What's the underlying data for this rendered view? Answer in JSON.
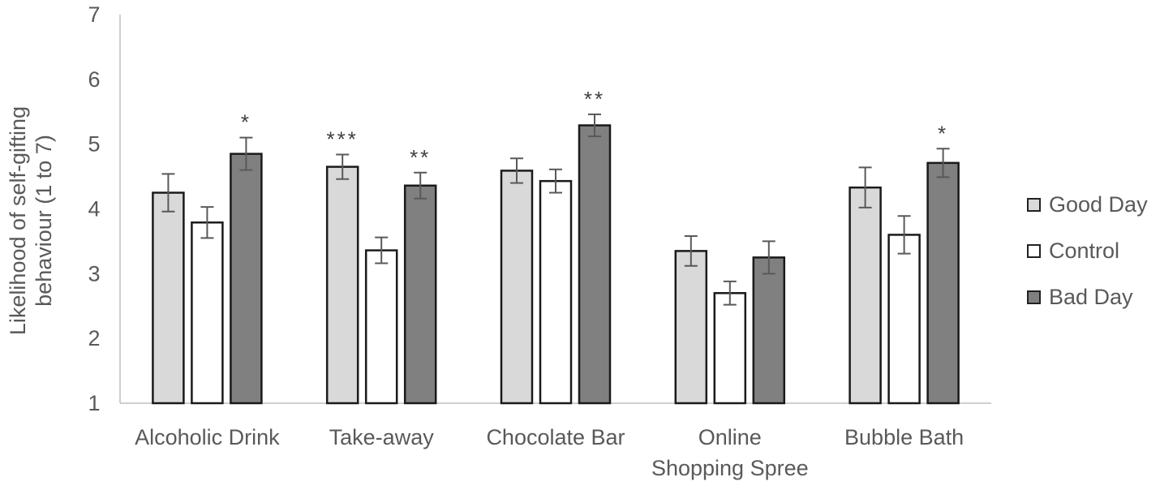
{
  "chart_data": {
    "type": "bar",
    "title": "",
    "xlabel": "",
    "ylabel": "Likelihood of self-gifting behaviour (1 to 7)",
    "ylim": [
      1,
      7
    ],
    "yticks": [
      1,
      2,
      3,
      4,
      5,
      6,
      7
    ],
    "grid": false,
    "legend_position": "right",
    "categories": [
      "Alcoholic Drink",
      "Take-away",
      "Chocolate Bar",
      "Online Shopping Spree",
      "Bubble Bath"
    ],
    "series": [
      {
        "name": "Good Day",
        "color": "#d9d9d9",
        "values": [
          4.25,
          4.65,
          4.59,
          3.35,
          4.33
        ],
        "errors": [
          0.29,
          0.19,
          0.19,
          0.23,
          0.31
        ],
        "annotations": [
          "",
          "***",
          "",
          "",
          ""
        ]
      },
      {
        "name": "Control",
        "color": "#ffffff",
        "values": [
          3.79,
          3.36,
          4.43,
          2.7,
          3.6
        ],
        "errors": [
          0.24,
          0.2,
          0.18,
          0.18,
          0.29
        ],
        "annotations": [
          "",
          "",
          "",
          "",
          ""
        ]
      },
      {
        "name": "Bad Day",
        "color": "#808080",
        "values": [
          4.85,
          4.36,
          5.29,
          3.25,
          4.71
        ],
        "errors": [
          0.25,
          0.2,
          0.17,
          0.25,
          0.22
        ],
        "annotations": [
          "*",
          "**",
          "**",
          "",
          "*"
        ]
      }
    ]
  },
  "axis": {
    "ylabel_line1": "Likelihood of self-gifting",
    "ylabel_line2": "behaviour (1 to 7)"
  }
}
